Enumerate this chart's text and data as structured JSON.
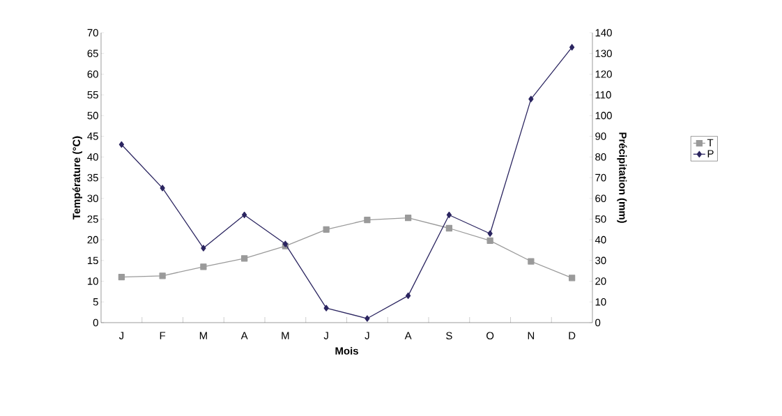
{
  "chart_data": {
    "type": "line",
    "xlabel": "Mois",
    "ylabel": "Température (°C)",
    "y2label": "Précipitation (mm)",
    "categories": [
      "J",
      "F",
      "M",
      "A",
      "M",
      "J",
      "J",
      "A",
      "S",
      "O",
      "N",
      "D"
    ],
    "series": [
      {
        "name": "T",
        "color": "#9a9a9a",
        "marker": "square",
        "values": [
          11,
          11.3,
          13.5,
          15.5,
          18.5,
          22.5,
          24.8,
          25.3,
          22.8,
          19.8,
          14.8,
          10.8
        ]
      },
      {
        "name": "P",
        "color": "#2b2560",
        "marker": "diamond",
        "axis": "y2",
        "values": [
          86,
          65,
          36,
          52,
          38,
          7,
          2,
          13,
          52,
          43,
          108,
          133
        ]
      }
    ],
    "ylim": [
      0,
      70
    ],
    "yticks": [
      0,
      5,
      10,
      15,
      20,
      25,
      30,
      35,
      40,
      45,
      50,
      55,
      60,
      65,
      70
    ],
    "y2lim": [
      0,
      140
    ],
    "y2ticks": [
      0,
      10,
      20,
      30,
      40,
      50,
      60,
      70,
      80,
      90,
      100,
      110,
      120,
      130,
      140
    ],
    "legend": "right",
    "grid": false
  }
}
